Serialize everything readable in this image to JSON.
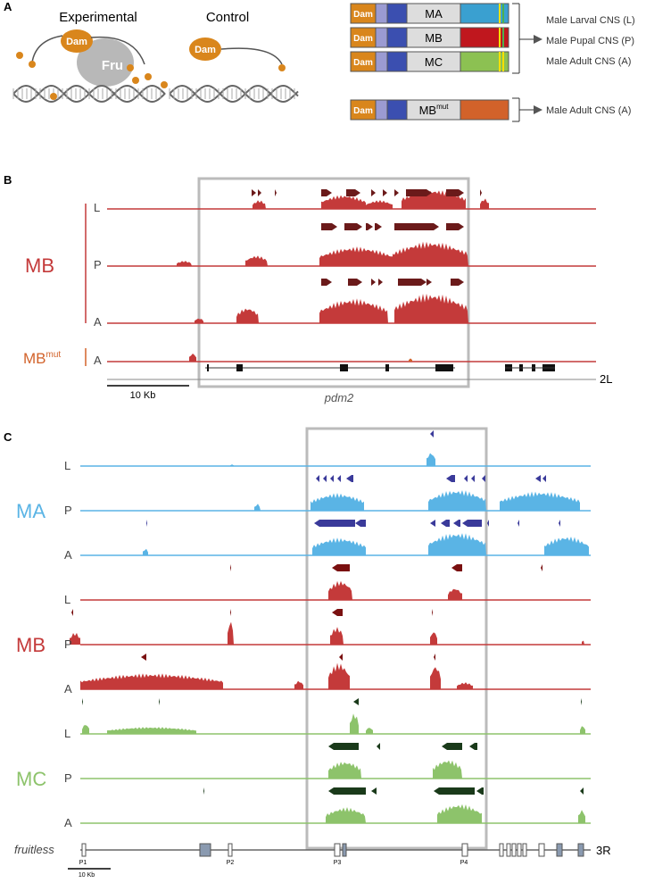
{
  "panel_a": {
    "label": "A",
    "experimental": "Experimental",
    "control": "Control",
    "dam_exp": "Dam",
    "fru": "Fru",
    "dam_ctrl": "Dam",
    "constructs": [
      {
        "dam": "Dam",
        "name": "MA"
      },
      {
        "dam": "Dam",
        "name": "MB"
      },
      {
        "dam": "Dam",
        "name": "MC"
      },
      {
        "dam": "Dam",
        "name": "MB",
        "sup": "mut"
      }
    ],
    "stages": [
      "Male Larval CNS (L)",
      "Male Pupal CNS (P)",
      "Male Adult CNS (A)"
    ],
    "mut_stage": "Male Adult CNS (A)"
  },
  "panel_b": {
    "label": "B",
    "group": "MB",
    "rows": [
      "L",
      "P",
      "A"
    ],
    "mut_group": "MB",
    "mut_sup": "mut",
    "mut_row": "A",
    "scale": "10 Kb",
    "chrom": "2L",
    "gene": "pdm2"
  },
  "panel_c": {
    "label": "C",
    "groups": [
      {
        "name": "MA",
        "rows": [
          "L",
          "P",
          "A"
        ]
      },
      {
        "name": "MB",
        "rows": [
          "L",
          "P",
          "A"
        ]
      },
      {
        "name": "MC",
        "rows": [
          "L",
          "P",
          "A"
        ]
      }
    ],
    "gene": "fruitless",
    "promoters": [
      "P1",
      "P2",
      "P3",
      "P4"
    ],
    "scale": "10 Kb",
    "chrom": "3R"
  }
}
